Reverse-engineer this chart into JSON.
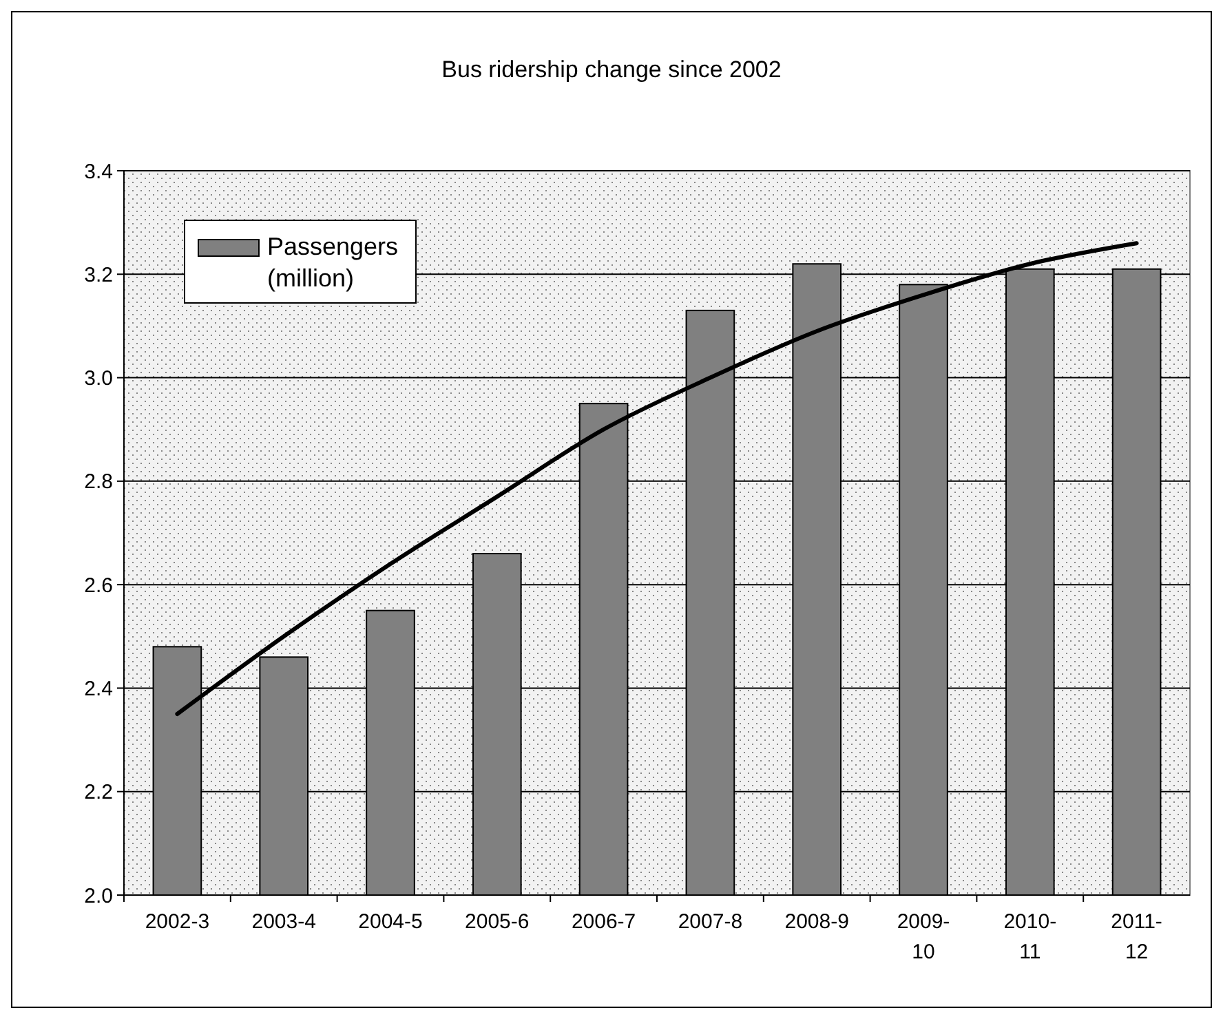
{
  "chart_data": {
    "type": "bar",
    "title": "Bus ridership change since 2002",
    "categories": [
      "2002-3",
      "2003-4",
      "2004-5",
      "2005-6",
      "2006-7",
      "2007-8",
      "2008-9",
      "2009-10",
      "2010-11",
      "2011-12"
    ],
    "series": [
      {
        "name": "Passengers (million)",
        "color": "#808080",
        "values": [
          2.48,
          2.46,
          2.55,
          2.66,
          2.95,
          3.13,
          3.22,
          3.18,
          3.21,
          3.21
        ]
      },
      {
        "type": "line",
        "color": "#000000",
        "values": [
          2.35,
          2.5,
          2.64,
          2.77,
          2.9,
          3.0,
          3.09,
          3.16,
          3.22,
          3.26
        ]
      }
    ],
    "ylim": [
      2.0,
      3.4
    ],
    "yticks": [
      {
        "value": 2.0,
        "label": "2.0"
      },
      {
        "value": 2.2,
        "label": "2.2"
      },
      {
        "value": 2.4,
        "label": "2.4"
      },
      {
        "value": 2.6,
        "label": "2.6"
      },
      {
        "value": 2.8,
        "label": "2.8"
      },
      {
        "value": 3.0,
        "label": "3.0"
      },
      {
        "value": 3.2,
        "label": "3.2"
      },
      {
        "value": 3.4,
        "label": "3.4"
      }
    ],
    "grid": "y",
    "legend": "top left"
  }
}
